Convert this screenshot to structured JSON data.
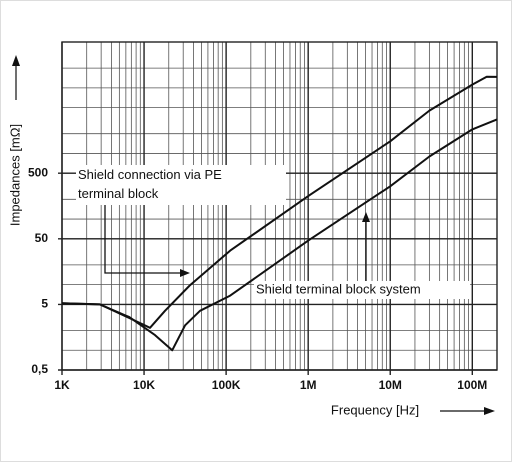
{
  "chart_data": {
    "type": "line",
    "xlabel": "Frequency [Hz]",
    "ylabel": "Impedances [mΩ]",
    "xscale": "log",
    "yscale": "log",
    "xlim": [
      1000,
      200000000
    ],
    "ylim": [
      0.5,
      50000
    ],
    "xticks": [
      {
        "value": 1000,
        "label": "1K"
      },
      {
        "value": 10000,
        "label": "10K"
      },
      {
        "value": 100000,
        "label": "100K"
      },
      {
        "value": 1000000,
        "label": "1M"
      },
      {
        "value": 10000000,
        "label": "10M"
      },
      {
        "value": 100000000,
        "label": "100M"
      }
    ],
    "yticks": [
      {
        "value": 0.5,
        "label": "0,5"
      },
      5,
      50,
      500
    ],
    "grid": true,
    "series": [
      {
        "name": "Shield connection via PE terminal block",
        "color": "#111111",
        "x": [
          1000,
          2900,
          6600,
          11800,
          18000,
          36000,
          112000,
          1000000,
          10000000,
          30000000,
          100000000,
          150000000,
          200000000
        ],
        "values": [
          5.2,
          5,
          3.1,
          2.2,
          4,
          9.7,
          33,
          224,
          1530,
          4500,
          11200,
          14800,
          14700
        ]
      },
      {
        "name": "Shield terminal block system",
        "color": "#111111",
        "x": [
          1000,
          2900,
          6600,
          13600,
          22000,
          31600,
          48000,
          112000,
          1000000,
          10000000,
          30000000,
          100000000,
          200000000
        ],
        "values": [
          5.2,
          5,
          3.2,
          1.7,
          1,
          2.4,
          4,
          6.8,
          47,
          316,
          900,
          2330,
          3300
        ]
      }
    ]
  }
}
